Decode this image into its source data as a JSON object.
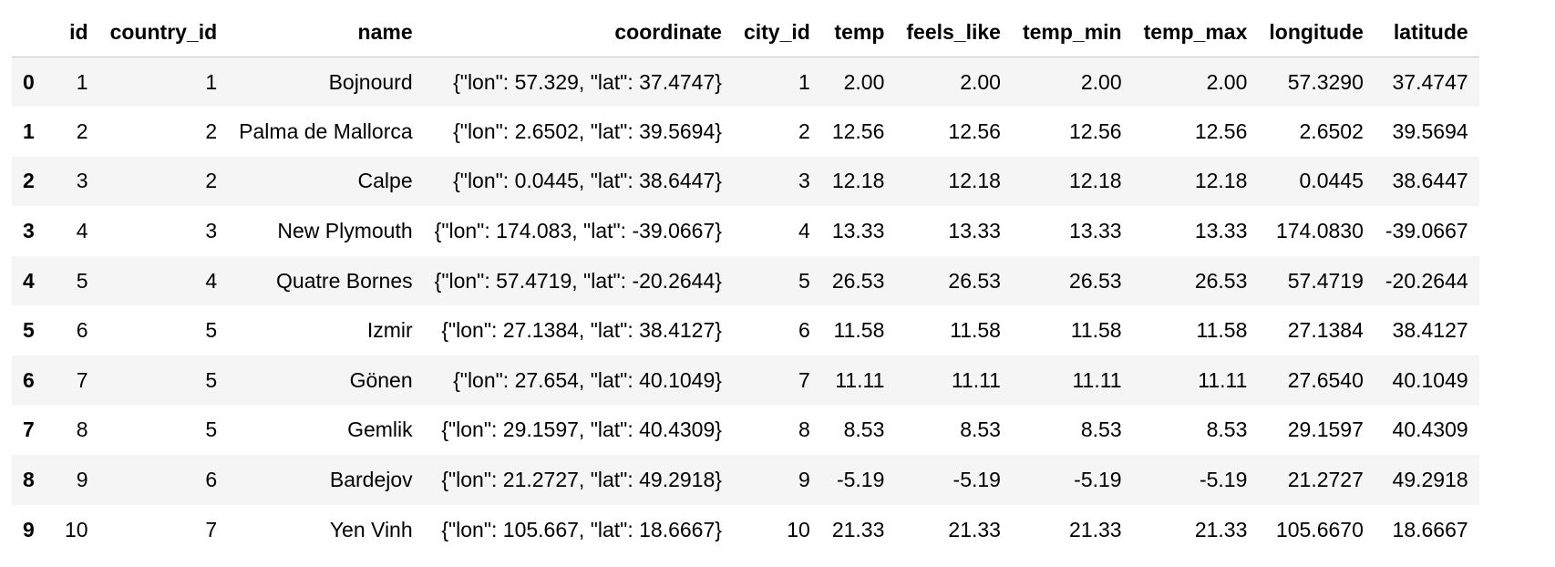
{
  "table": {
    "columns": [
      "id",
      "country_id",
      "name",
      "coordinate",
      "city_id",
      "temp",
      "feels_like",
      "temp_min",
      "temp_max",
      "longitude",
      "latitude"
    ],
    "rows": [
      {
        "index": "0",
        "cells": [
          "1",
          "1",
          "Bojnourd",
          "{\"lon\": 57.329, \"lat\": 37.4747}",
          "1",
          "2.00",
          "2.00",
          "2.00",
          "2.00",
          "57.3290",
          "37.4747"
        ]
      },
      {
        "index": "1",
        "cells": [
          "2",
          "2",
          "Palma de Mallorca",
          "{\"lon\": 2.6502, \"lat\": 39.5694}",
          "2",
          "12.56",
          "12.56",
          "12.56",
          "12.56",
          "2.6502",
          "39.5694"
        ]
      },
      {
        "index": "2",
        "cells": [
          "3",
          "2",
          "Calpe",
          "{\"lon\": 0.0445, \"lat\": 38.6447}",
          "3",
          "12.18",
          "12.18",
          "12.18",
          "12.18",
          "0.0445",
          "38.6447"
        ]
      },
      {
        "index": "3",
        "cells": [
          "4",
          "3",
          "New Plymouth",
          "{\"lon\": 174.083, \"lat\": -39.0667}",
          "4",
          "13.33",
          "13.33",
          "13.33",
          "13.33",
          "174.0830",
          "-39.0667"
        ]
      },
      {
        "index": "4",
        "cells": [
          "5",
          "4",
          "Quatre Bornes",
          "{\"lon\": 57.4719, \"lat\": -20.2644}",
          "5",
          "26.53",
          "26.53",
          "26.53",
          "26.53",
          "57.4719",
          "-20.2644"
        ]
      },
      {
        "index": "5",
        "cells": [
          "6",
          "5",
          "Izmir",
          "{\"lon\": 27.1384, \"lat\": 38.4127}",
          "6",
          "11.58",
          "11.58",
          "11.58",
          "11.58",
          "27.1384",
          "38.4127"
        ]
      },
      {
        "index": "6",
        "cells": [
          "7",
          "5",
          "Gönen",
          "{\"lon\": 27.654, \"lat\": 40.1049}",
          "7",
          "11.11",
          "11.11",
          "11.11",
          "11.11",
          "27.6540",
          "40.1049"
        ]
      },
      {
        "index": "7",
        "cells": [
          "8",
          "5",
          "Gemlik",
          "{\"lon\": 29.1597, \"lat\": 40.4309}",
          "8",
          "8.53",
          "8.53",
          "8.53",
          "8.53",
          "29.1597",
          "40.4309"
        ]
      },
      {
        "index": "8",
        "cells": [
          "9",
          "6",
          "Bardejov",
          "{\"lon\": 21.2727, \"lat\": 49.2918}",
          "9",
          "-5.19",
          "-5.19",
          "-5.19",
          "-5.19",
          "21.2727",
          "49.2918"
        ]
      },
      {
        "index": "9",
        "cells": [
          "10",
          "7",
          "Yen Vinh",
          "{\"lon\": 105.667, \"lat\": 18.6667}",
          "10",
          "21.33",
          "21.33",
          "21.33",
          "21.33",
          "105.6670",
          "18.6667"
        ]
      }
    ]
  }
}
